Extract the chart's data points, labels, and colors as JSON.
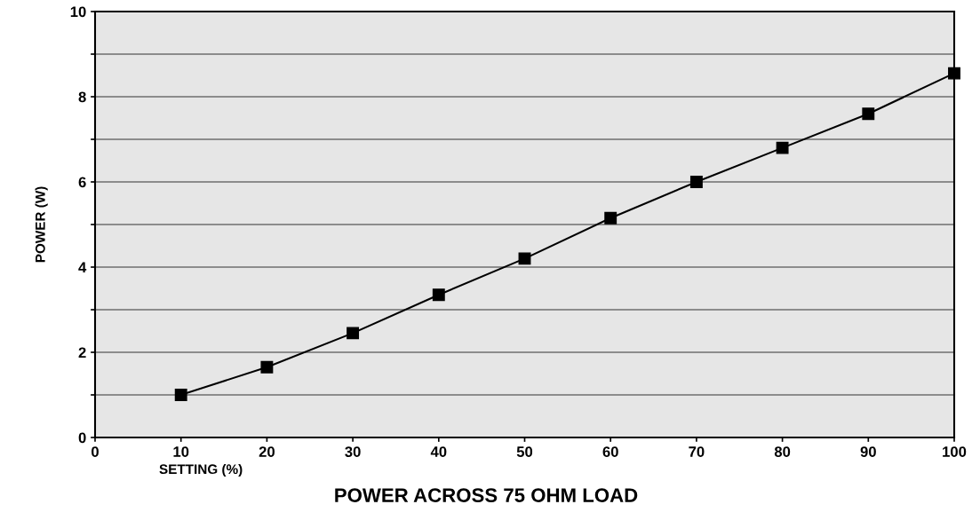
{
  "chart_data": {
    "type": "line",
    "title": "POWER ACROSS 75 OHM LOAD",
    "xlabel": "SETTING (%)",
    "ylabel": "POWER (W)",
    "x": [
      10,
      20,
      30,
      40,
      50,
      60,
      70,
      80,
      90,
      100
    ],
    "series": [
      {
        "color": "#000000",
        "values": [
          1.0,
          1.65,
          2.45,
          3.35,
          4.2,
          5.15,
          6.0,
          6.8,
          7.6,
          8.55
        ]
      }
    ],
    "xlim": [
      0,
      100
    ],
    "xticks": [
      0,
      10,
      20,
      30,
      40,
      50,
      60,
      70,
      80,
      90,
      100
    ],
    "ylim": [
      0,
      10
    ],
    "yticks": [
      0,
      {
        "value": 1,
        "label": null
      },
      2,
      {
        "value": 3,
        "label": null
      },
      4,
      {
        "value": 5,
        "label": null
      },
      6,
      {
        "value": 7,
        "label": null
      },
      8,
      {
        "value": 9,
        "label": null
      },
      10
    ],
    "grid": "y",
    "marker": "square",
    "line_style": "solid"
  }
}
